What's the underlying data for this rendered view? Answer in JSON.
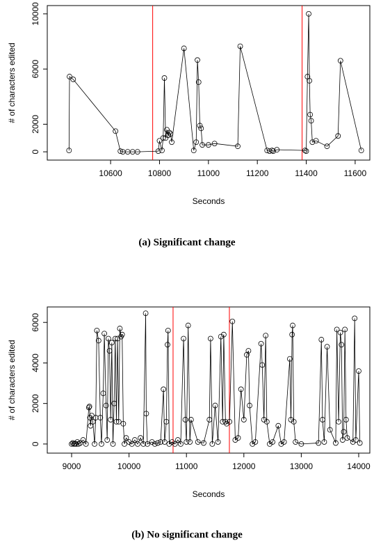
{
  "chart_data": [
    {
      "type": "line",
      "caption": "(a) Significant change",
      "xlabel": "Seconds",
      "ylabel": "# of characters edited",
      "color": "#000000",
      "vline_color": "#ff0000",
      "xlim": [
        10341,
        11660
      ],
      "ylim": [
        -600,
        10600
      ],
      "xticks": [
        10600,
        10800,
        11000,
        11200,
        11400,
        11600
      ],
      "yticks": [
        0,
        2000,
        6000,
        10000
      ],
      "vlines": [
        10772,
        11383
      ],
      "x": [
        10430,
        10432,
        10447,
        10620,
        10640,
        10650,
        10670,
        10690,
        10710,
        10795,
        10800,
        10810,
        10815,
        10820,
        10825,
        10830,
        10835,
        10840,
        10845,
        10850,
        10900,
        10940,
        10950,
        10955,
        10960,
        10965,
        10970,
        10975,
        11000,
        11025,
        11120,
        11130,
        11240,
        11250,
        11260,
        11265,
        11280,
        11395,
        11400,
        11405,
        11410,
        11413,
        11416,
        11420,
        11425,
        11440,
        11485,
        11530,
        11540,
        11625
      ],
      "values": [
        100,
        5450,
        5250,
        1500,
        50,
        0,
        0,
        0,
        0,
        50,
        800,
        100,
        1000,
        5350,
        1000,
        1600,
        1200,
        1400,
        1300,
        700,
        7500,
        100,
        700,
        6650,
        5050,
        1900,
        1700,
        500,
        500,
        600,
        400,
        7650,
        100,
        50,
        100,
        50,
        150,
        100,
        50,
        5450,
        10000,
        5150,
        2700,
        2250,
        700,
        800,
        400,
        1150,
        6600,
        100
      ]
    },
    {
      "type": "line",
      "caption": "(b) No significant change",
      "xlabel": "Seconds",
      "ylabel": "# of characters edited",
      "color": "#000000",
      "vline_color": "#ff0000",
      "xlim": [
        8576,
        14194
      ],
      "ylim": [
        -450,
        6763
      ],
      "xticks": [
        9000,
        10000,
        11000,
        12000,
        13000,
        14000
      ],
      "yticks": [
        0,
        2000,
        4000,
        6000
      ],
      "vlines": [
        10767,
        11748
      ],
      "x": [
        9000,
        9020,
        9040,
        9060,
        9080,
        9100,
        9120,
        9150,
        9200,
        9250,
        9300,
        9310,
        9320,
        9330,
        9350,
        9370,
        9400,
        9420,
        9440,
        9470,
        9500,
        9520,
        9550,
        9570,
        9600,
        9620,
        9640,
        9660,
        9680,
        9700,
        9720,
        9740,
        9760,
        9780,
        9800,
        9820,
        9840,
        9860,
        9880,
        9900,
        9920,
        9950,
        10000,
        10050,
        10100,
        10150,
        10200,
        10250,
        10290,
        10300,
        10320,
        10400,
        10450,
        10500,
        10550,
        10600,
        10620,
        10650,
        10670,
        10680,
        10700,
        10750,
        10800,
        10850,
        10900,
        10950,
        10980,
        11000,
        11030,
        11060,
        11080,
        11200,
        11300,
        11400,
        11420,
        11450,
        11500,
        11550,
        11600,
        11630,
        11650,
        11680,
        11700,
        11750,
        11800,
        11850,
        11900,
        11950,
        12000,
        12050,
        12080,
        12100,
        12150,
        12200,
        12300,
        12320,
        12350,
        12380,
        12400,
        12450,
        12500,
        12600,
        12650,
        12700,
        12800,
        12820,
        12840,
        12850,
        12870,
        12900,
        13000,
        13300,
        13350,
        13370,
        13400,
        13450,
        13500,
        13600,
        13620,
        13650,
        13680,
        13700,
        13720,
        13740,
        13760,
        13780,
        13800,
        13900,
        13930,
        13950,
        14000,
        14020
      ],
      "values": [
        0,
        50,
        0,
        20,
        0,
        100,
        0,
        50,
        200,
        0,
        1800,
        1850,
        1300,
        900,
        1400,
        1100,
        0,
        1300,
        5600,
        5100,
        1300,
        0,
        2500,
        5450,
        1900,
        200,
        5200,
        4600,
        1200,
        5000,
        0,
        2000,
        5200,
        1100,
        5200,
        1100,
        5700,
        5300,
        5400,
        1000,
        0,
        300,
        100,
        0,
        200,
        0,
        300,
        0,
        6450,
        1500,
        0,
        100,
        0,
        50,
        100,
        2700,
        100,
        1100,
        4900,
        5600,
        0,
        100,
        0,
        200,
        0,
        5200,
        1200,
        100,
        5850,
        100,
        1200,
        100,
        50,
        1200,
        5200,
        0,
        1900,
        100,
        5300,
        1100,
        5400,
        1100,
        1000,
        1100,
        6050,
        200,
        300,
        2700,
        1200,
        4400,
        4600,
        1900,
        0,
        100,
        4950,
        3900,
        1200,
        5350,
        1100,
        0,
        100,
        900,
        0,
        100,
        4200,
        1200,
        5400,
        5850,
        1100,
        100,
        0,
        50,
        5150,
        1200,
        100,
        4800,
        700,
        50,
        5650,
        1100,
        5500,
        4900,
        200,
        600,
        5650,
        1200,
        300,
        100,
        6200,
        200,
        3600,
        50
      ]
    }
  ]
}
